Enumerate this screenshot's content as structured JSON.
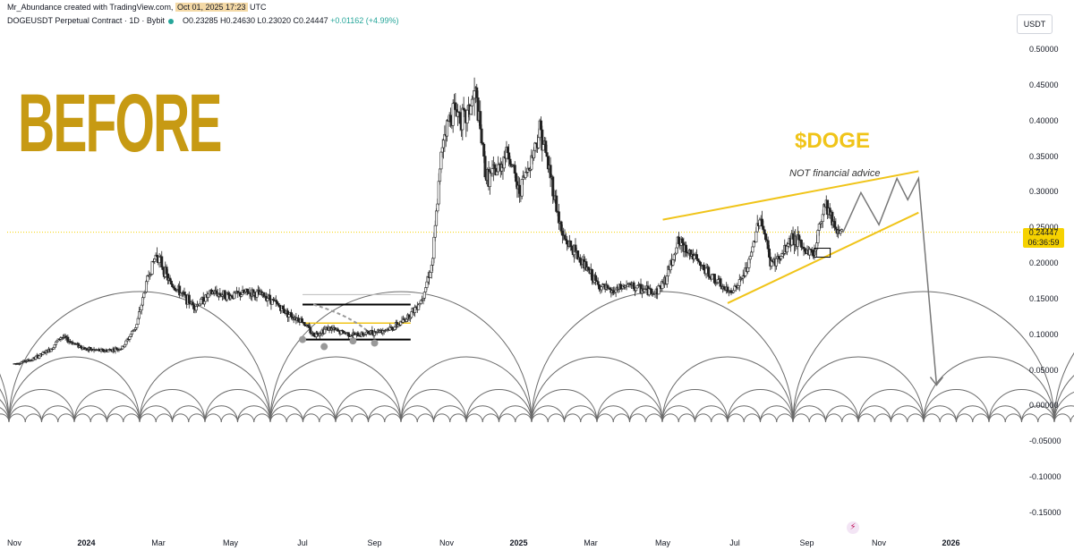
{
  "header": {
    "credit_prefix": "Mr_Abundance created with TradingView.com,",
    "credit_date": "Oct 01, 2025 17:23",
    "credit_suffix": "UTC",
    "symbol": "DOGEUSDT Perpetual Contract · 1D · Bybit",
    "ohlc": "O0.23285  H0.24630  L0.23020  C0.24447",
    "change": "+0.01162 (+4.99%)",
    "currency": "USDT"
  },
  "annotations": {
    "before": "BEFORE",
    "ticker": "$DOGE",
    "disclaimer": "NOT financial advice"
  },
  "price_tag": {
    "price": "0.24447",
    "countdown": "06:36:59"
  },
  "colors": {
    "gold": "#c79a13",
    "yellow": "#f0c419",
    "candle": "#222222",
    "cycles": "#6b6b6b",
    "tag": "#f6d200"
  },
  "icons": {
    "flash": "lightning-icon"
  },
  "chart_data": {
    "type": "candlestick",
    "title": "DOGEUSDT Perpetual Contract · 1D · Bybit",
    "ylim": [
      -0.17,
      0.52
    ],
    "y_ticks": [
      "0.50000",
      "0.45000",
      "0.40000",
      "0.35000",
      "0.30000",
      "0.25000",
      "0.20000",
      "0.15000",
      "0.10000",
      "0.05000",
      "0.00000",
      "-0.05000",
      "-0.10000",
      "-0.15000"
    ],
    "x_ticks": [
      {
        "label": "Nov",
        "idx": 0
      },
      {
        "label": "2024",
        "idx": 2,
        "bold": true
      },
      {
        "label": "Mar",
        "idx": 4
      },
      {
        "label": "May",
        "idx": 6
      },
      {
        "label": "Jul",
        "idx": 8
      },
      {
        "label": "Sep",
        "idx": 10
      },
      {
        "label": "Nov",
        "idx": 12
      },
      {
        "label": "2025",
        "idx": 14,
        "bold": true
      },
      {
        "label": "Mar",
        "idx": 16
      },
      {
        "label": "May",
        "idx": 18
      },
      {
        "label": "Jul",
        "idx": 20
      },
      {
        "label": "Sep",
        "idx": 22
      },
      {
        "label": "Nov",
        "idx": 24
      },
      {
        "label": "2026",
        "idx": 26,
        "bold": true
      }
    ],
    "x_range_months": [
      -0.2,
      27.8
    ],
    "price_path": [
      [
        0,
        0.06
      ],
      [
        0.5,
        0.066
      ],
      [
        1,
        0.08
      ],
      [
        1.3,
        0.098
      ],
      [
        1.6,
        0.09
      ],
      [
        2,
        0.08
      ],
      [
        2.5,
        0.078
      ],
      [
        3,
        0.082
      ],
      [
        3.4,
        0.115
      ],
      [
        3.7,
        0.18
      ],
      [
        3.95,
        0.215
      ],
      [
        4.3,
        0.175
      ],
      [
        4.6,
        0.16
      ],
      [
        5,
        0.14
      ],
      [
        5.5,
        0.16
      ],
      [
        6,
        0.155
      ],
      [
        6.5,
        0.16
      ],
      [
        7,
        0.155
      ],
      [
        7.6,
        0.13
      ],
      [
        8,
        0.12
      ],
      [
        8.3,
        0.1
      ],
      [
        8.7,
        0.11
      ],
      [
        9,
        0.105
      ],
      [
        9.5,
        0.1
      ],
      [
        10,
        0.105
      ],
      [
        10.5,
        0.11
      ],
      [
        10.8,
        0.12
      ],
      [
        11,
        0.13
      ],
      [
        11.3,
        0.15
      ],
      [
        11.6,
        0.2
      ],
      [
        11.9,
        0.38
      ],
      [
        12.2,
        0.42
      ],
      [
        12.5,
        0.4
      ],
      [
        12.8,
        0.44
      ],
      [
        13.1,
        0.32
      ],
      [
        13.4,
        0.33
      ],
      [
        13.7,
        0.36
      ],
      [
        14,
        0.3
      ],
      [
        14.3,
        0.34
      ],
      [
        14.6,
        0.39
      ],
      [
        14.9,
        0.32
      ],
      [
        15.2,
        0.24
      ],
      [
        15.5,
        0.22
      ],
      [
        15.8,
        0.2
      ],
      [
        16.2,
        0.17
      ],
      [
        16.6,
        0.16
      ],
      [
        17,
        0.17
      ],
      [
        17.4,
        0.165
      ],
      [
        17.8,
        0.16
      ],
      [
        18.1,
        0.18
      ],
      [
        18.4,
        0.23
      ],
      [
        18.7,
        0.22
      ],
      [
        19,
        0.2
      ],
      [
        19.4,
        0.18
      ],
      [
        19.8,
        0.16
      ],
      [
        20.1,
        0.17
      ],
      [
        20.4,
        0.2
      ],
      [
        20.7,
        0.27
      ],
      [
        21,
        0.2
      ],
      [
        21.3,
        0.21
      ],
      [
        21.6,
        0.24
      ],
      [
        21.9,
        0.22
      ],
      [
        22.2,
        0.215
      ],
      [
        22.5,
        0.29
      ],
      [
        22.8,
        0.25
      ],
      [
        23,
        0.244
      ]
    ],
    "projection_path": [
      [
        23,
        0.244
      ],
      [
        23.5,
        0.3
      ],
      [
        24,
        0.255
      ],
      [
        24.5,
        0.32
      ],
      [
        24.8,
        0.29
      ],
      [
        25.1,
        0.32
      ],
      [
        25.6,
        0.03
      ]
    ],
    "wedge_upper": [
      [
        18.0,
        0.262
      ],
      [
        25.1,
        0.33
      ]
    ],
    "wedge_lower": [
      [
        19.8,
        0.145
      ],
      [
        25.1,
        0.272
      ]
    ],
    "range_box": {
      "x": [
        8,
        11
      ],
      "top": 0.143,
      "mid": 0.117,
      "bottom": 0.094
    }
  }
}
